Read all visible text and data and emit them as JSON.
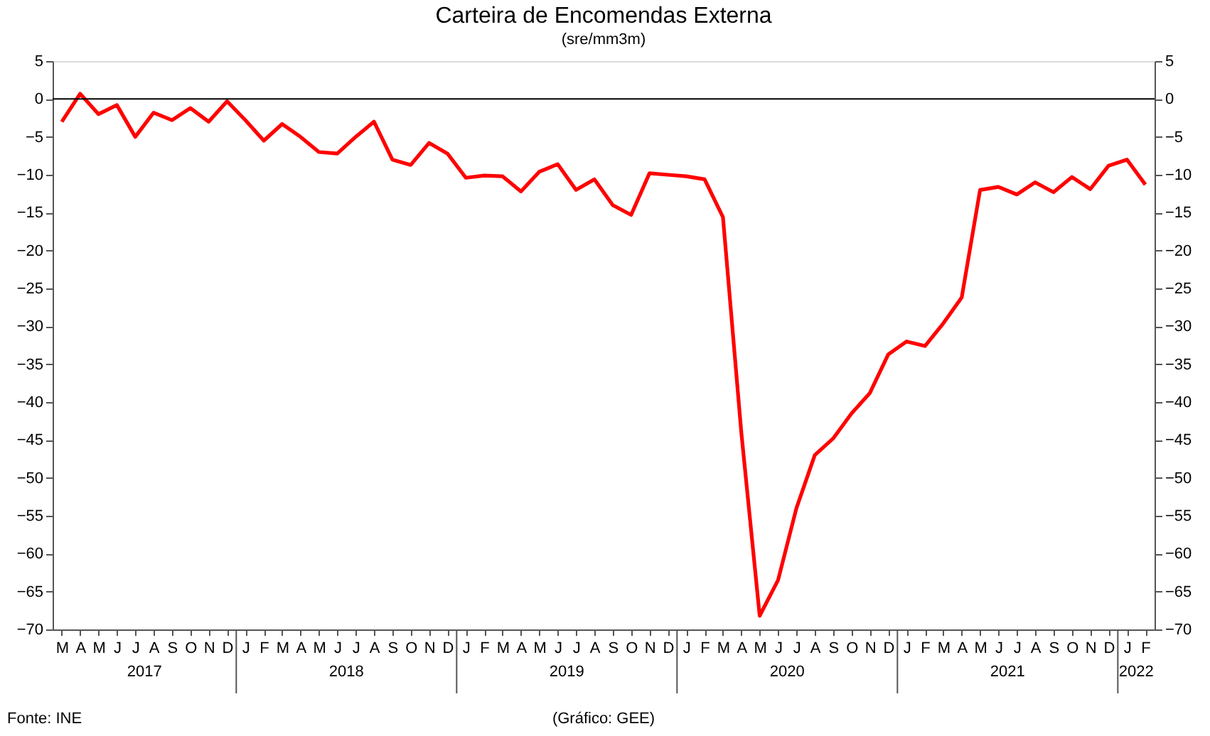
{
  "chart_data": {
    "type": "line",
    "title": "Carteira de Encomendas Externa",
    "subtitle": "(sre/mm3m)",
    "categories": [
      "M",
      "A",
      "M",
      "J",
      "J",
      "A",
      "S",
      "O",
      "N",
      "D",
      "J",
      "F",
      "M",
      "A",
      "M",
      "J",
      "J",
      "A",
      "S",
      "O",
      "N",
      "D",
      "J",
      "F",
      "M",
      "A",
      "M",
      "J",
      "J",
      "A",
      "S",
      "O",
      "N",
      "D",
      "J",
      "F",
      "M",
      "A",
      "M",
      "J",
      "J",
      "A",
      "S",
      "O",
      "N",
      "D",
      "J",
      "F",
      "M",
      "A",
      "M",
      "J",
      "J",
      "A",
      "S",
      "O",
      "N",
      "D",
      "J",
      "F"
    ],
    "series": [
      {
        "color": "#ff0000",
        "values": [
          -3,
          0.7,
          -2,
          -0.8,
          -5,
          -1.8,
          -2.8,
          -1.2,
          -3,
          -0.3,
          -2.8,
          -5.5,
          -3.3,
          -5,
          -7,
          -7.2,
          -5,
          -3,
          -8,
          -8.7,
          -5.8,
          -7.2,
          -10.4,
          -10.1,
          -10.2,
          -12.2,
          -9.6,
          -8.6,
          -12,
          -10.6,
          -14,
          -15.3,
          -9.8,
          -10,
          -10.2,
          -10.6,
          -15.6,
          -44,
          -68.2,
          -63.5,
          -54,
          -47,
          -44.8,
          -41.5,
          -38.8,
          -33.7,
          -32,
          -32.6,
          -29.6,
          -26.2,
          -12,
          -11.6,
          -12.6,
          -11,
          -12.3,
          -10.3,
          -11.9,
          -8.8,
          -8,
          -11.3
        ]
      }
    ],
    "ylim": [
      -70,
      5
    ],
    "yticks": [
      -70,
      -65,
      -60,
      -55,
      -50,
      -45,
      -40,
      -35,
      -30,
      -25,
      -20,
      -15,
      -10,
      -5,
      0,
      5
    ],
    "y2lim": [
      -70,
      5
    ],
    "y2ticks": [
      -70,
      -65,
      -60,
      -55,
      -50,
      -45,
      -40,
      -35,
      -30,
      -25,
      -20,
      -15,
      -10,
      -5,
      0,
      5
    ],
    "ref_lines": [
      {
        "axis": "y",
        "value": 0,
        "color": "#000000"
      }
    ],
    "annotations": [
      "2017",
      "2018",
      "2019",
      "2020",
      "2021",
      "2022",
      "Fonte: INE",
      "(Gráfico: GEE)"
    ],
    "grid": false,
    "legend": false,
    "marker": "none",
    "line_style": "solid"
  }
}
